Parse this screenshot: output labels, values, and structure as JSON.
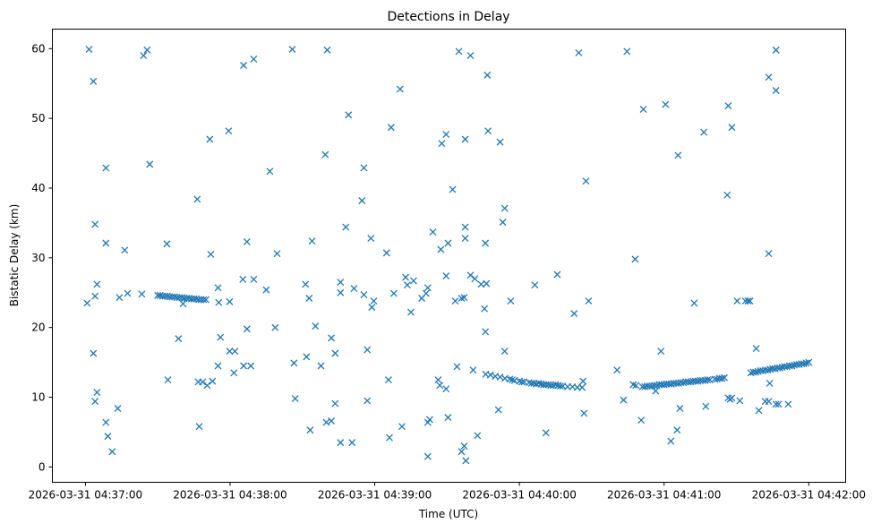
{
  "chart_data": {
    "type": "scatter",
    "title": "Detections in Delay",
    "xlabel": "Time (UTC)",
    "ylabel": "Bistatic Delay (km)",
    "x_unit": "seconds after 2026-03-31 04:37:00 UTC",
    "xlim": [
      -13.7,
      315.3
    ],
    "ylim": [
      -2.2,
      62.8
    ],
    "grid": false,
    "marker": "x",
    "color": "#1f77b4",
    "xticks": [
      {
        "value": 0,
        "label": "2026-03-31 04:37:00"
      },
      {
        "value": 60,
        "label": "2026-03-31 04:38:00"
      },
      {
        "value": 120,
        "label": "2026-03-31 04:39:00"
      },
      {
        "value": 180,
        "label": "2026-03-31 04:40:00"
      },
      {
        "value": 240,
        "label": "2026-03-31 04:41:00"
      },
      {
        "value": 300,
        "label": "2026-03-31 04:42:00"
      }
    ],
    "yticks": [
      {
        "value": 0,
        "label": "0"
      },
      {
        "value": 10,
        "label": "10"
      },
      {
        "value": 20,
        "label": "20"
      },
      {
        "value": 30,
        "label": "30"
      },
      {
        "value": 40,
        "label": "40"
      },
      {
        "value": 50,
        "label": "50"
      },
      {
        "value": 60,
        "label": "60"
      }
    ],
    "points": [
      [
        0.7,
        23.5
      ],
      [
        1.5,
        59.9
      ],
      [
        3.3,
        55.3
      ],
      [
        3.3,
        16.3
      ],
      [
        4,
        34.8
      ],
      [
        4,
        24.5
      ],
      [
        4,
        9.4
      ],
      [
        4.8,
        26.2
      ],
      [
        4.8,
        10.7
      ],
      [
        8.5,
        42.9
      ],
      [
        8.5,
        32.1
      ],
      [
        8.5,
        6.4
      ],
      [
        9.3,
        4.4
      ],
      [
        11.1,
        2.2
      ],
      [
        13.4,
        8.4
      ],
      [
        14.1,
        24.3
      ],
      [
        16.3,
        31.1
      ],
      [
        17.5,
        24.9
      ],
      [
        23.4,
        24.8
      ],
      [
        24.1,
        59
      ],
      [
        25.6,
        59.8
      ],
      [
        26.7,
        43.4
      ],
      [
        33.8,
        32
      ],
      [
        34.2,
        12.5
      ],
      [
        38.6,
        18.4
      ],
      [
        40.5,
        23.4
      ],
      [
        30,
        24.6
      ],
      [
        31,
        24.6
      ],
      [
        32,
        24.5
      ],
      [
        33,
        24.5
      ],
      [
        34,
        24.5
      ],
      [
        35,
        24.4
      ],
      [
        36,
        24.4
      ],
      [
        37,
        24.4
      ],
      [
        38,
        24.3
      ],
      [
        39,
        24.3
      ],
      [
        40,
        24.3
      ],
      [
        41,
        24.2
      ],
      [
        42,
        24.2
      ],
      [
        43,
        24.2
      ],
      [
        44,
        24.1
      ],
      [
        45,
        24.1
      ],
      [
        46,
        24.1
      ],
      [
        47,
        24
      ],
      [
        48,
        24
      ],
      [
        49,
        24
      ],
      [
        50,
        24
      ],
      [
        46.4,
        38.4
      ],
      [
        47.2,
        5.8
      ],
      [
        46.8,
        12.2
      ],
      [
        48.6,
        12.2
      ],
      [
        50.5,
        11.7
      ],
      [
        51.6,
        47
      ],
      [
        52,
        30.5
      ],
      [
        52.7,
        12.3
      ],
      [
        55,
        25.7
      ],
      [
        55.3,
        23.6
      ],
      [
        56,
        18.6
      ],
      [
        55,
        14.5
      ],
      [
        59.4,
        48.2
      ],
      [
        59.8,
        16.6
      ],
      [
        62,
        16.6
      ],
      [
        61.6,
        13.5
      ],
      [
        59.8,
        23.7
      ],
      [
        65.6,
        57.6
      ],
      [
        67,
        32.3
      ],
      [
        67,
        19.8
      ],
      [
        65.3,
        26.9
      ],
      [
        69.8,
        26.9
      ],
      [
        65.6,
        14.5
      ],
      [
        68.6,
        14.5
      ],
      [
        69.8,
        58.5
      ],
      [
        75,
        25.4
      ],
      [
        76.5,
        42.4
      ],
      [
        78.7,
        20
      ],
      [
        79.5,
        30.6
      ],
      [
        85.8,
        59.9
      ],
      [
        86.5,
        14.9
      ],
      [
        87,
        9.8
      ],
      [
        91.3,
        26.2
      ],
      [
        91.7,
        15.8
      ],
      [
        92.8,
        24.2
      ],
      [
        93.2,
        5.3
      ],
      [
        94,
        32.4
      ],
      [
        95.4,
        20.2
      ],
      [
        97.7,
        14.5
      ],
      [
        99.5,
        44.8
      ],
      [
        100.3,
        59.8
      ],
      [
        99.9,
        6.4
      ],
      [
        102,
        6.6
      ],
      [
        102,
        18.5
      ],
      [
        103.6,
        16.3
      ],
      [
        103.6,
        9.1
      ],
      [
        105.8,
        26.5
      ],
      [
        105.8,
        25
      ],
      [
        105.8,
        3.5
      ],
      [
        108,
        34.4
      ],
      [
        109.1,
        50.5
      ],
      [
        110.6,
        3.5
      ],
      [
        111.4,
        25.6
      ],
      [
        114.7,
        38.2
      ],
      [
        115.5,
        42.9
      ],
      [
        115.5,
        24.7
      ],
      [
        116.9,
        16.8
      ],
      [
        116.9,
        9.5
      ],
      [
        118.4,
        32.8
      ],
      [
        118.8,
        22.9
      ],
      [
        119.6,
        23.8
      ],
      [
        124.9,
        30.7
      ],
      [
        125.7,
        12.5
      ],
      [
        126.1,
        4.2
      ],
      [
        126.8,
        48.7
      ],
      [
        127.9,
        24.9
      ],
      [
        130.5,
        54.2
      ],
      [
        131.3,
        5.8
      ],
      [
        132.8,
        27.2
      ],
      [
        133.5,
        26.1
      ],
      [
        135,
        22.2
      ],
      [
        136.1,
        26.7
      ],
      [
        139.5,
        24.2
      ],
      [
        141.3,
        24.9
      ],
      [
        142,
        25.7
      ],
      [
        142,
        6.4
      ],
      [
        142.8,
        6.8
      ],
      [
        142,
        1.5
      ],
      [
        144.1,
        33.7
      ],
      [
        146.3,
        12.5
      ],
      [
        147,
        11.7
      ],
      [
        147.4,
        31.2
      ],
      [
        147.8,
        46.4
      ],
      [
        149.6,
        47.7
      ],
      [
        150.4,
        32.1
      ],
      [
        149.6,
        27.4
      ],
      [
        149.6,
        11.2
      ],
      [
        150.4,
        7.1
      ],
      [
        152.3,
        39.8
      ],
      [
        153.4,
        23.8
      ],
      [
        154.1,
        14.4
      ],
      [
        154.9,
        59.6
      ],
      [
        156,
        24.2
      ],
      [
        157.1,
        24.3
      ],
      [
        157.5,
        47
      ],
      [
        156,
        2.2
      ],
      [
        157.1,
        3
      ],
      [
        157.8,
        0.9
      ],
      [
        157.5,
        34.4
      ],
      [
        157.5,
        32.8
      ],
      [
        159.7,
        59
      ],
      [
        159.7,
        27.5
      ],
      [
        160.8,
        13.9
      ],
      [
        161.5,
        27
      ],
      [
        162.6,
        4.5
      ],
      [
        164.1,
        26.2
      ],
      [
        165.5,
        22.7
      ],
      [
        165.9,
        19.4
      ],
      [
        165.9,
        32.1
      ],
      [
        166.7,
        56.2
      ],
      [
        167,
        48.2
      ],
      [
        166.3,
        26.3
      ],
      [
        166,
        13.3
      ],
      [
        168,
        13.2
      ],
      [
        170,
        13
      ],
      [
        172,
        12.9
      ],
      [
        174,
        12.7
      ],
      [
        176,
        12.6
      ],
      [
        177,
        12.5
      ],
      [
        178,
        12.4
      ],
      [
        180,
        12.3
      ],
      [
        181,
        12.2
      ],
      [
        182,
        12.2
      ],
      [
        184,
        12.1
      ],
      [
        185,
        12
      ],
      [
        186,
        12
      ],
      [
        187,
        11.9
      ],
      [
        188,
        12
      ],
      [
        189,
        11.9
      ],
      [
        190,
        11.8
      ],
      [
        191,
        11.8
      ],
      [
        192,
        11.8
      ],
      [
        193,
        11.7
      ],
      [
        194,
        11.7
      ],
      [
        195,
        11.8
      ],
      [
        196,
        11.7
      ],
      [
        197,
        11.6
      ],
      [
        198,
        11.6
      ],
      [
        200,
        11.5
      ],
      [
        202,
        11.5
      ],
      [
        204,
        11.4
      ],
      [
        206,
        11.4
      ],
      [
        171.3,
        8.2
      ],
      [
        172,
        46.6
      ],
      [
        173.1,
        35.1
      ],
      [
        173.9,
        37.1
      ],
      [
        173.9,
        16.6
      ],
      [
        176.4,
        23.8
      ],
      [
        186.4,
        26.1
      ],
      [
        191,
        4.9
      ],
      [
        195.7,
        27.6
      ],
      [
        202.7,
        22
      ],
      [
        204.6,
        59.4
      ],
      [
        206.4,
        12.3
      ],
      [
        206.8,
        7.7
      ],
      [
        207.6,
        41
      ],
      [
        208.7,
        23.8
      ],
      [
        220.5,
        13.9
      ],
      [
        223.2,
        9.6
      ],
      [
        224.6,
        59.6
      ],
      [
        227.2,
        11.8
      ],
      [
        228,
        29.8
      ],
      [
        228.3,
        11.7
      ],
      [
        230.5,
        6.7
      ],
      [
        231.4,
        51.3
      ],
      [
        231,
        11.5
      ],
      [
        232,
        11.5
      ],
      [
        233,
        11.6
      ],
      [
        234,
        11.6
      ],
      [
        235,
        11.6
      ],
      [
        236,
        11.7
      ],
      [
        237,
        11.7
      ],
      [
        238,
        11.8
      ],
      [
        239,
        11.8
      ],
      [
        240,
        11.8
      ],
      [
        241,
        11.9
      ],
      [
        242,
        11.9
      ],
      [
        243,
        11.9
      ],
      [
        244,
        12
      ],
      [
        245,
        12
      ],
      [
        246,
        12
      ],
      [
        247,
        12.1
      ],
      [
        248,
        12.1
      ],
      [
        249,
        12.2
      ],
      [
        250,
        12.2
      ],
      [
        251,
        12.2
      ],
      [
        252,
        12.3
      ],
      [
        253,
        12.3
      ],
      [
        254,
        12.3
      ],
      [
        255,
        12.4
      ],
      [
        256,
        12.4
      ],
      [
        257,
        12.4
      ],
      [
        258,
        12.5
      ],
      [
        259,
        12.5
      ],
      [
        261,
        12.6
      ],
      [
        262,
        12.6
      ],
      [
        263,
        12.7
      ],
      [
        264,
        12.7
      ],
      [
        265,
        12.8
      ],
      [
        236.5,
        10.9
      ],
      [
        238.7,
        16.6
      ],
      [
        240.6,
        52
      ],
      [
        242.8,
        3.7
      ],
      [
        245.4,
        5.3
      ],
      [
        246.6,
        8.4
      ],
      [
        245.8,
        44.7
      ],
      [
        252.5,
        23.5
      ],
      [
        256.5,
        48
      ],
      [
        257.3,
        8.7
      ],
      [
        266.2,
        39
      ],
      [
        266.6,
        9.9
      ],
      [
        267.4,
        9.7
      ],
      [
        268.1,
        9.9
      ],
      [
        266.6,
        51.8
      ],
      [
        268.1,
        48.7
      ],
      [
        270.3,
        23.8
      ],
      [
        271.4,
        9.5
      ],
      [
        273.7,
        23.8
      ],
      [
        274.8,
        23.8
      ],
      [
        275.6,
        23.8
      ],
      [
        276,
        13.5
      ],
      [
        277,
        13.6
      ],
      [
        278,
        13.6
      ],
      [
        279,
        13.7
      ],
      [
        280,
        13.8
      ],
      [
        281,
        13.8
      ],
      [
        282,
        13.9
      ],
      [
        283,
        13.9
      ],
      [
        284,
        14
      ],
      [
        285,
        14.1
      ],
      [
        286,
        14.1
      ],
      [
        287,
        14.2
      ],
      [
        288,
        14.2
      ],
      [
        289,
        14.3
      ],
      [
        290,
        14.4
      ],
      [
        291,
        14.4
      ],
      [
        292,
        14.5
      ],
      [
        293,
        14.5
      ],
      [
        294,
        14.6
      ],
      [
        295,
        14.7
      ],
      [
        296,
        14.7
      ],
      [
        297,
        14.8
      ],
      [
        298,
        14.8
      ],
      [
        299,
        14.9
      ],
      [
        300,
        15
      ],
      [
        278.2,
        17
      ],
      [
        279.3,
        8.1
      ],
      [
        281.9,
        9.4
      ],
      [
        283.4,
        9.4
      ],
      [
        283.4,
        55.9
      ],
      [
        283.4,
        30.6
      ],
      [
        283.8,
        12
      ],
      [
        286.4,
        54
      ],
      [
        286.4,
        9
      ],
      [
        287.5,
        9
      ],
      [
        286.4,
        59.8
      ],
      [
        291.5,
        9
      ]
    ]
  }
}
